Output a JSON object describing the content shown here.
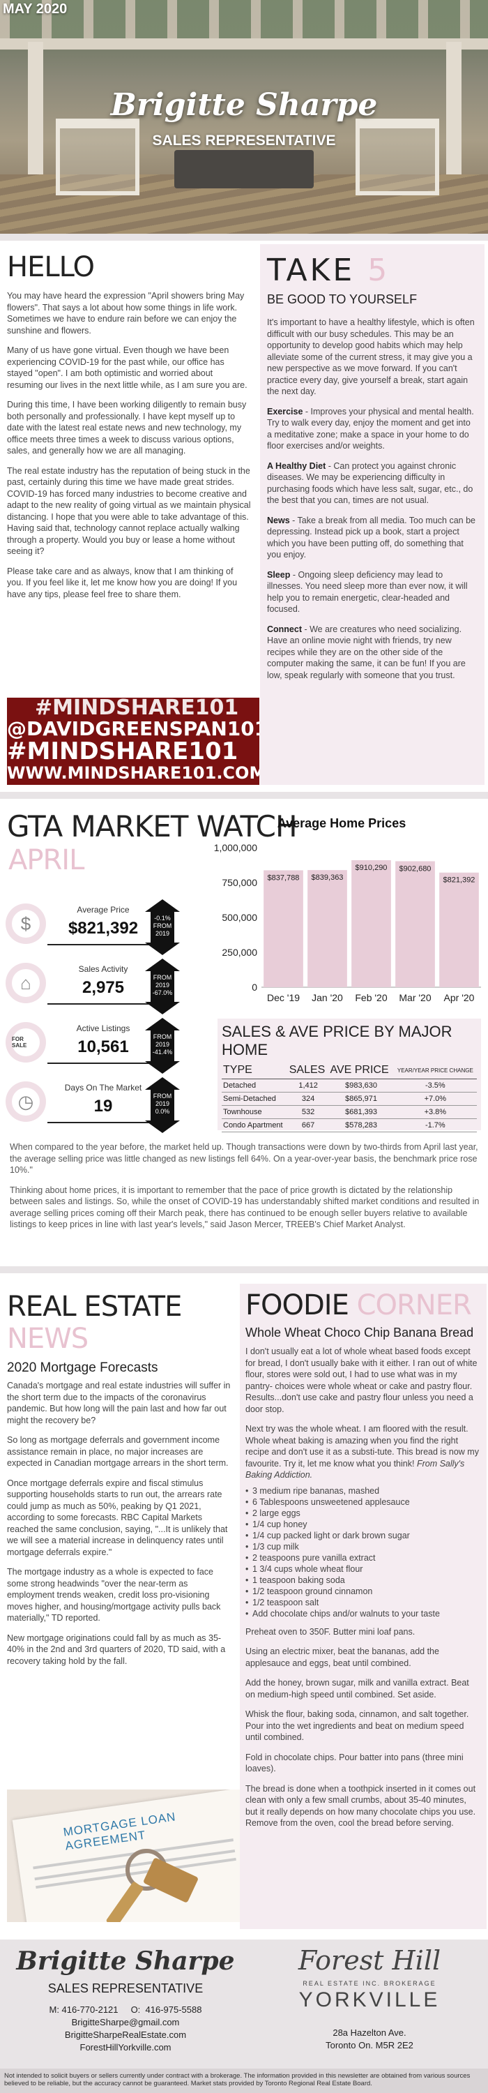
{
  "hero": {
    "date": "MAY 2020",
    "name": "Brigitte Sharpe",
    "role": "SALES REPRESENTATIVE"
  },
  "hello": {
    "title": "HELLO",
    "paragraphs": [
      "You may have heard the expression \"April showers bring May flowers\". That says a lot about how some things in life work. Sometimes we have to endure rain before we can enjoy the sunshine and flowers.",
      "Many of us have gone virtual. Even though we have been experiencing COVID-19 for the past while, our office has stayed \"open\". I am both optimistic and worried about resuming our lives in the next little while, as I am sure you are.",
      "During this time, I have been working diligently to remain busy both personally and professionally. I have kept myself up to date with the latest real estate news and new technology, my office meets three times a week to discuss various options, sales, and generally how we are all managing.",
      "The real estate industry has the reputation of being stuck in the past, certainly during this time we have made great strides. COVID-19 has forced many industries to become creative and adapt to the new reality of going virtual as we maintain physical distancing. I hope that you were able to take advantage of this. Having said that, technology cannot replace actually walking through a property. Would you buy or lease a home without seeing it?",
      "Please take care and as always, know that I am thinking of you. If you feel like it, let me know how you are doing! If you have any tips, please feel free to share them."
    ],
    "banner": [
      "#MINDSHARE101",
      "@DAVIDGREENSPAN101",
      "#MINDSHARE101",
      "WWW.MINDSHARE101.COM"
    ]
  },
  "take5": {
    "title": "TAKE",
    "number": "5",
    "subtitle": "BE GOOD TO YOURSELF",
    "intro": "It's important to have a healthy lifestyle, which is often difficult with our busy schedules. This may be an opportunity to develop good habits which may help alleviate some of the current stress, it may give you a new perspective as we move forward. If you can't practice every day, give yourself a break, start again the next day.",
    "items": [
      {
        "head": "Exercise",
        "text": " - Improves your physical and mental health. Try to walk every day, enjoy the moment and get into a meditative zone; make a space in your home to do floor exercises and/or weights."
      },
      {
        "head": "A Healthy Diet",
        "text": " - Can protect you against chronic diseases. We may be experiencing difficulty in purchasing foods which have less salt, sugar, etc., do the best that you can, times are not usual."
      },
      {
        "head": "News",
        "text": " - Take a break from all media. Too much can be depressing. Instead pick up a book, start a project which you have been putting off, do something that you enjoy."
      },
      {
        "head": "Sleep",
        "text": " - Ongoing sleep deficiency may lead to illnesses. You need sleep more than ever now, it will help you to remain energetic, clear-headed and focused."
      },
      {
        "head": "Connect",
        "text": " - We are creatures who need socializing. Have an online movie night with friends, try new recipes while they are on the other side of the computer making the same, it can be fun! If you are low, speak regularly with someone that you trust."
      }
    ]
  },
  "gta": {
    "title": "GTA MARKET WATCH",
    "month": "APRIL",
    "stats": [
      {
        "icon": "dollar-icon",
        "label": "Average Price",
        "value": "$821,392",
        "change": "-0.1%",
        "from": [
          "FROM",
          "2019"
        ],
        "dir": "down"
      },
      {
        "icon": "house-icon",
        "label": "Sales Activity",
        "value": "2,975",
        "change": "-67.0%",
        "from": [
          "FROM",
          "2019"
        ],
        "dir": "down"
      },
      {
        "icon": "for-sale-sign-icon",
        "label": "Active Listings",
        "value": "10,561",
        "change": "-41.4%",
        "from": [
          "FROM",
          "2019"
        ],
        "dir": "down"
      },
      {
        "icon": "clock-icon",
        "label": "Days On The Market",
        "value": "19",
        "change": "0.0%",
        "from": [
          "FROM",
          "2019"
        ],
        "dir": "down"
      }
    ],
    "for_sale_text": "FOR SALE",
    "table": {
      "title": "SALES & AVE PRICE BY MAJOR HOME",
      "headers": [
        "TYPE",
        "SALES",
        "AVE PRICE",
        "YEAR/YEAR PRICE CHANGE"
      ],
      "rows": [
        [
          "Detached",
          "1,412",
          "$983,630",
          "-3.5%"
        ],
        [
          "Semi-Detached",
          "324",
          "$865,971",
          "+7.0%"
        ],
        [
          "Townhouse",
          "532",
          "$681,393",
          "+3.8%"
        ],
        [
          "Condo Apartment",
          "667",
          "$578,283",
          "-1.7%"
        ]
      ]
    },
    "notes": [
      "When compared to the year before, the market held up. Though transactions were down by two-thirds from April last year, the average selling price was little changed as new listings fell 64%. On a year-over-year basis, the benchmark price rose 10%.\"",
      "Thinking about home prices, it is important to remember that the pace of price growth is dictated by the relationship between sales and listings. So, while the onset of COVID-19 has understandably shifted market conditions and resulted in average selling prices coming off their March peak, there has continued to be enough seller buyers relative to available listings to keep prices in line with last year's levels,\" said Jason Mercer, TREEB's Chief Market Analyst."
    ]
  },
  "chart_data": {
    "type": "bar",
    "title": "Average Home Prices",
    "categories": [
      "Dec '19",
      "Jan '20",
      "Feb '20",
      "Mar '20",
      "Apr '20"
    ],
    "values": [
      837788,
      839363,
      910290,
      902680,
      821392
    ],
    "value_labels": [
      "$837,788",
      "$839,363",
      "$910,290",
      "$902,680",
      "$821,392"
    ],
    "y_ticks": [
      "0",
      "250,000",
      "500,000",
      "750,000",
      "1,000,000"
    ],
    "ylim": [
      0,
      1000000
    ],
    "bar_color": "#e8cdd8"
  },
  "news": {
    "title": "REAL ESTATE",
    "title_accent": "NEWS",
    "subtitle": "2020 Mortgage Forecasts",
    "paragraphs": [
      "Canada's mortgage and real estate industries will suffer in the short term due to the impacts of the coronavirus pandemic. But how long will the pain last and how far out might the recovery be?",
      "So long as mortgage deferrals and government income assistance remain in place, no major increases are expected in Canadian mortgage arrears in the short term.",
      "Once mortgage deferrals expire and fiscal stimulus supporting households starts to run out, the arrears rate could jump as much as 50%, peaking by Q1 2021, according to some forecasts. RBC Capital Markets reached the same conclusion, saying, \"...It is unlikely that we will see a material increase in delinquency rates until mortgage deferrals expire.\"",
      "The mortgage industry as a whole is expected to face some strong headwinds \"over the near-term as employment trends weaken, credit loss pro-visioning moves higher, and housing/mortgage activity pulls back materially,\" TD reported.",
      "New mortgage originations could fall by as much as 35-40% in the 2nd and 3rd quarters of 2020, TD said, with a recovery taking hold by the fall."
    ],
    "image_text": "MORTGAGE LOAN AGREEMENT"
  },
  "foodie": {
    "title": "FOODIE",
    "title_accent": "CORNER",
    "subtitle": "Whole Wheat Choco Chip Banana Bread",
    "intro": [
      "I don't usually eat a lot of whole wheat based foods except for bread, I don't usually bake with it either. I ran out of white flour, stores were sold out, I had to use what was in my pantry- choices were whole wheat or cake and pastry flour. Results...don't use cake and pastry flour unless you need a door stop.",
      "Next try was the whole wheat. I am floored with the result. Whole wheat baking is amazing when you find the right recipe and don't use it as a substi-tute. This bread is now my favourite. Try it, let me know what you think! "
    ],
    "source": "From Sally's Baking Addiction.",
    "ingredients": [
      "3 medium ripe bananas, mashed",
      "6 Tablespoons unsweetened applesauce",
      "2 large eggs",
      "1/4 cup honey",
      "1/4 cup packed light or dark brown sugar",
      "1/3 cup milk",
      "2 teaspoons pure vanilla extract",
      "1 3/4 cups whole wheat flour",
      "1 teaspoon baking soda",
      "1/2 teaspoon ground cinnamon",
      "1/2 teaspoon salt",
      "Add chocolate chips and/or walnuts to your taste"
    ],
    "steps": [
      "Preheat oven to 350F. Butter mini loaf pans.",
      "Using an electric mixer, beat the bananas, add the applesauce and eggs, beat until combined.",
      "Add the honey, brown sugar, milk and vanilla extract. Beat on medium-high speed until combined. Set aside.",
      "Whisk the flour, baking soda, cinnamon, and salt together. Pour into the wet ingredients and beat on medium speed until combined.",
      "Fold in chocolate chips. Pour batter into pans (three mini loaves).",
      "The bread is done when a toothpick inserted in it comes out clean with only a few small crumbs, about 35-40 minutes, but it really depends on how many chocolate chips you use. Remove from the oven, cool the bread before serving."
    ]
  },
  "footer": {
    "name": "Brigitte Sharpe",
    "role": "SALES REPRESENTATIVE",
    "phones": "M: 416-770-2121     O:  416-975-5588",
    "email": "BrigitteSharpe@gmail.com",
    "site1": "BrigitteSharpeRealEstate.com",
    "site2": "ForestHillYorkville.com",
    "brand": "Forest Hill",
    "brand_sub": "REAL ESTATE INC. BROKERAGE",
    "brand_area": "YORKVILLE",
    "address1": "28a Hazelton Ave.",
    "address2": "Toronto On. M5R 2E2",
    "disclaimer": "Not intended to solicit buyers or sellers currently under contract with a brokerage.   The information provided in this newsletter are obtained from various sources believed to be reliable, but the accuracy cannot be guaranteed. Market stats provided by Toronto Regional Real Estate Board."
  }
}
